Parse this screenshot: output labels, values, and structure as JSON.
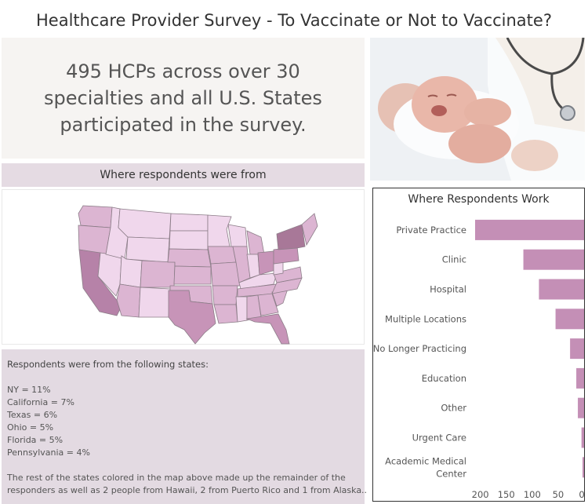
{
  "page": {
    "title": "Healthcare Provider Survey - To Vaccinate or Not to Vaccinate?"
  },
  "intro": {
    "text": "495 HCPs across over 30\nspecialties and  all U.S. States\nparticipated in the survey."
  },
  "photo": {
    "description_icon": "newborn-baby-with-doctor-image"
  },
  "map": {
    "header": "Where respondents were from",
    "colors": {
      "low": "#f0d7ec",
      "mid": "#dcb5d2",
      "high": "#c794b8",
      "top": "#a87898"
    }
  },
  "states": {
    "heading": "Respondents were from the following states:",
    "stats": [
      "NY = 11%",
      "California = 7%",
      "Texas = 6%",
      "Ohio = 5%",
      "Florida = 5%",
      "Pennsylvania = 4%"
    ],
    "note_line1": "The rest of the states colored in the map above made up the remainder of the",
    "note_line2": "responders as well as 2 people from Hawaii, 2 from Puerto Rico and 1 from Alaska.."
  },
  "chart_data": {
    "type": "bar",
    "orientation": "horizontal",
    "title": "Where Respondents Work",
    "categories": [
      "Private Practice",
      "Clinic",
      "Hospital",
      "Multiple Locations",
      "No Longer Practicing",
      "Education",
      "Other",
      "Urgent Care",
      "Academic Medical Center"
    ],
    "category_lines": [
      [
        "Private Practice"
      ],
      [
        "Clinic"
      ],
      [
        "Hospital"
      ],
      [
        "Multiple Locations"
      ],
      [
        "No Longer Practicing"
      ],
      [
        "Education"
      ],
      [
        "Other"
      ],
      [
        "Urgent Care"
      ],
      [
        "Academic Medical",
        "Center"
      ]
    ],
    "values": [
      210,
      117,
      87,
      55,
      27,
      15,
      12,
      5,
      3
    ],
    "x_ticks": [
      200,
      150,
      100,
      50,
      0
    ],
    "x_tick_labels": [
      "200",
      "150",
      "100",
      "50",
      "0"
    ],
    "xlim": [
      0,
      210
    ],
    "reversed_axis": true,
    "bar_color": "#c48fb6",
    "grid": false
  }
}
